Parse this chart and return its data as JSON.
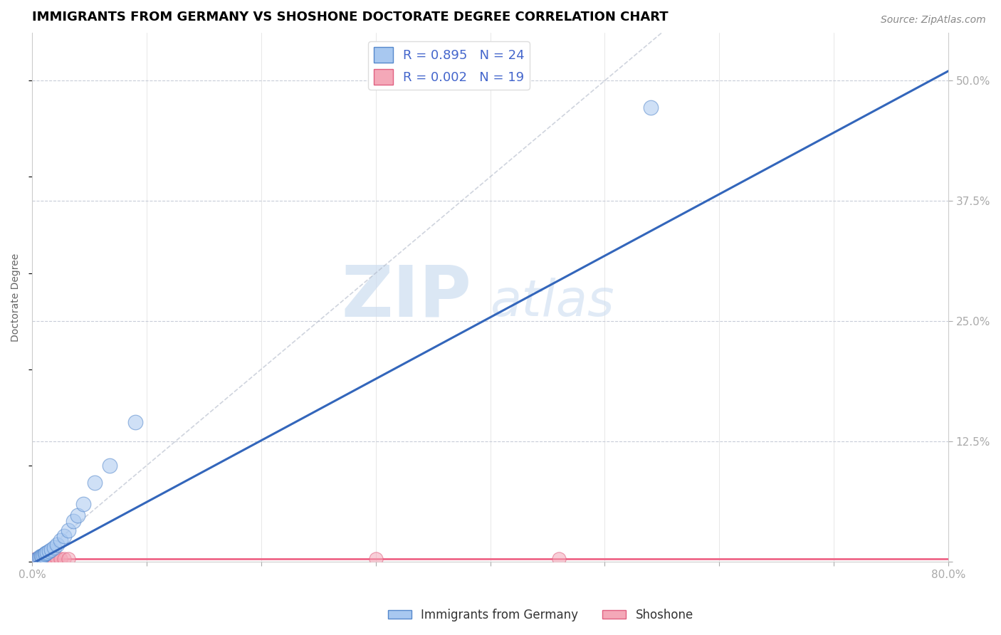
{
  "title": "IMMIGRANTS FROM GERMANY VS SHOSHONE DOCTORATE DEGREE CORRELATION CHART",
  "source_text": "Source: ZipAtlas.com",
  "ylabel": "Doctorate Degree",
  "watermark_part1": "ZIP",
  "watermark_part2": "atlas",
  "blue_label": "Immigrants from Germany",
  "pink_label": "Shoshone",
  "blue_R": 0.895,
  "blue_N": 24,
  "pink_R": 0.002,
  "pink_N": 19,
  "xlim": [
    0.0,
    0.8
  ],
  "ylim": [
    0.0,
    0.55
  ],
  "yticks": [
    0.0,
    0.125,
    0.25,
    0.375,
    0.5
  ],
  "ytick_labels": [
    "",
    "12.5%",
    "25.0%",
    "37.5%",
    "50.0%"
  ],
  "blue_fill": "#a8c8f0",
  "blue_edge": "#5588cc",
  "pink_fill": "#f4a8b8",
  "pink_edge": "#e06080",
  "blue_line_color": "#3366bb",
  "pink_line_color": "#ee6688",
  "legend_text_color": "#4466cc",
  "blue_scatter_x": [
    0.003,
    0.005,
    0.006,
    0.007,
    0.008,
    0.009,
    0.01,
    0.011,
    0.012,
    0.013,
    0.015,
    0.017,
    0.019,
    0.022,
    0.025,
    0.028,
    0.032,
    0.036,
    0.04,
    0.045,
    0.055,
    0.068,
    0.09,
    0.54
  ],
  "blue_scatter_y": [
    0.002,
    0.003,
    0.004,
    0.005,
    0.006,
    0.006,
    0.007,
    0.008,
    0.009,
    0.01,
    0.011,
    0.013,
    0.015,
    0.018,
    0.022,
    0.027,
    0.033,
    0.042,
    0.048,
    0.06,
    0.082,
    0.1,
    0.145,
    0.472
  ],
  "pink_scatter_x": [
    0.003,
    0.004,
    0.005,
    0.006,
    0.007,
    0.008,
    0.009,
    0.01,
    0.011,
    0.013,
    0.015,
    0.017,
    0.019,
    0.022,
    0.025,
    0.028,
    0.032,
    0.3,
    0.46
  ],
  "pink_scatter_y": [
    0.003,
    0.003,
    0.003,
    0.003,
    0.003,
    0.003,
    0.003,
    0.003,
    0.003,
    0.003,
    0.003,
    0.003,
    0.003,
    0.003,
    0.003,
    0.003,
    0.003,
    0.003,
    0.003
  ],
  "blue_trend_x0": 0.0,
  "blue_trend_y0": -0.002,
  "blue_trend_x1": 0.8,
  "blue_trend_y1": 0.51,
  "pink_trend_x0": 0.0,
  "pink_trend_y0": 0.003,
  "pink_trend_x1": 0.8,
  "pink_trend_y1": 0.003,
  "ref_line_x0": 0.0,
  "ref_line_y0": 0.0,
  "ref_line_x1": 0.56,
  "ref_line_y1": 0.56,
  "title_fontsize": 13,
  "axis_label_fontsize": 10,
  "tick_fontsize": 11,
  "legend_fontsize": 13,
  "source_fontsize": 10
}
